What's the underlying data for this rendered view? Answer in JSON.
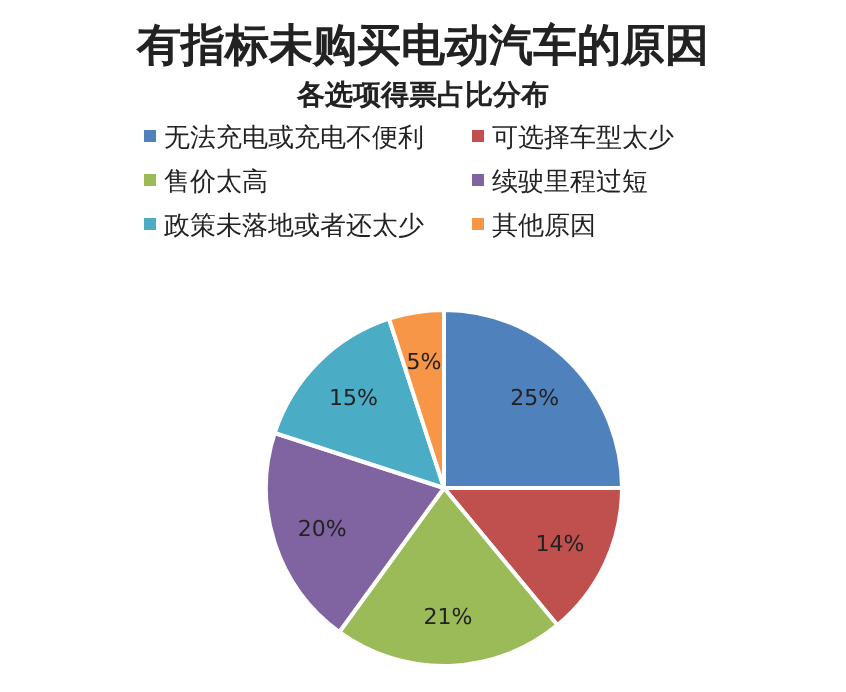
{
  "chart_data": {
    "type": "pie",
    "title": "有指标未购买电动汽车的原因",
    "subtitle": "各选项得票占比分布",
    "categories": [
      "无法充电或充电不便利",
      "可选择车型太少",
      "售价太高",
      "续驶里程过短",
      "政策未落地或者还太少",
      "其他原因"
    ],
    "values": [
      25,
      14,
      21,
      20,
      15,
      5
    ],
    "value_labels": [
      "25%",
      "14%",
      "21%",
      "20%",
      "15%",
      "5%"
    ],
    "colors": [
      "#4f81bd",
      "#c0504d",
      "#9bbb59",
      "#8064a2",
      "#4bacc6",
      "#f79646"
    ],
    "legend": "top"
  }
}
